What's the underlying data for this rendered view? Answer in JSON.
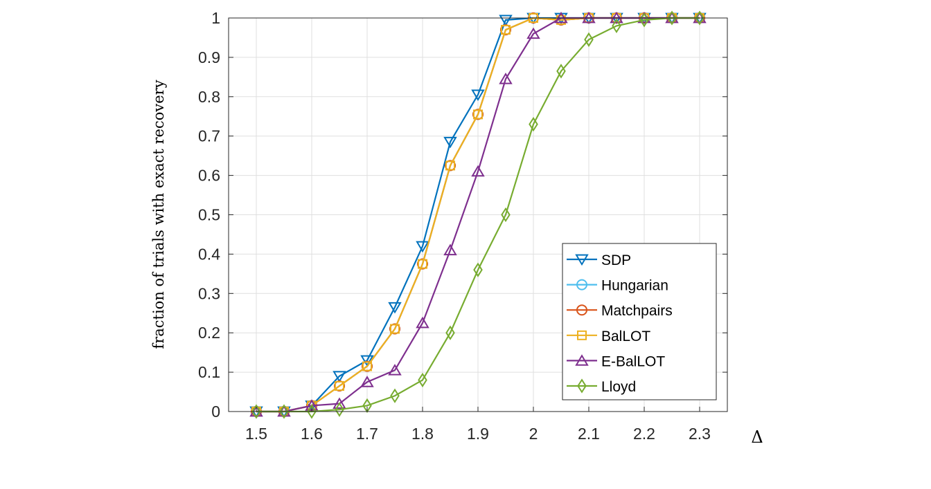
{
  "chart_data": {
    "type": "line",
    "title": "",
    "xlabel": "Δ",
    "ylabel": "fraction of trials with exact recovery",
    "xlim": [
      1.45,
      2.35
    ],
    "ylim": [
      0,
      1
    ],
    "xticks": [
      "1.5",
      "1.6",
      "1.7",
      "1.8",
      "1.9",
      "2",
      "2.1",
      "2.2",
      "2.3"
    ],
    "yticks": [
      "0",
      "0.1",
      "0.2",
      "0.3",
      "0.4",
      "0.5",
      "0.6",
      "0.7",
      "0.8",
      "0.9",
      "1"
    ],
    "grid": true,
    "legend_position": "bottom-right",
    "x": [
      1.5,
      1.55,
      1.6,
      1.65,
      1.7,
      1.75,
      1.8,
      1.85,
      1.9,
      1.95,
      2.0,
      2.05,
      2.1,
      2.15,
      2.2,
      2.25,
      2.3
    ],
    "series": [
      {
        "name": "SDP",
        "color": "#0072BD",
        "marker": "triangle-down",
        "values": [
          0,
          0,
          0.015,
          0.09,
          0.13,
          0.265,
          0.42,
          0.685,
          0.805,
          0.995,
          1,
          1,
          1,
          1,
          1,
          1,
          1
        ]
      },
      {
        "name": "Hungarian",
        "color": "#4DBEEE",
        "marker": "circle",
        "values": [
          0,
          0,
          0.015,
          0.065,
          0.115,
          0.21,
          0.375,
          0.625,
          0.755,
          0.97,
          1,
          0.995,
          1,
          1,
          1,
          1,
          1
        ]
      },
      {
        "name": "Matchpairs",
        "color": "#D95319",
        "marker": "circle",
        "values": [
          0,
          0,
          0.015,
          0.065,
          0.115,
          0.21,
          0.375,
          0.625,
          0.755,
          0.97,
          1,
          0.995,
          1,
          1,
          1,
          1,
          1
        ]
      },
      {
        "name": "BalLOT",
        "color": "#EDB120",
        "marker": "square",
        "values": [
          0,
          0,
          0.015,
          0.065,
          0.115,
          0.21,
          0.375,
          0.625,
          0.755,
          0.97,
          1,
          0.995,
          1,
          1,
          1,
          1,
          1
        ]
      },
      {
        "name": "E-BalLOT",
        "color": "#7E2F8E",
        "marker": "triangle-up",
        "values": [
          0,
          0,
          0.015,
          0.02,
          0.075,
          0.105,
          0.225,
          0.41,
          0.61,
          0.845,
          0.96,
          1,
          1,
          1,
          1,
          1,
          1
        ]
      },
      {
        "name": "Lloyd",
        "color": "#77AC30",
        "marker": "diamond",
        "values": [
          0,
          0,
          0,
          0.005,
          0.015,
          0.04,
          0.08,
          0.2,
          0.36,
          0.5,
          0.73,
          0.865,
          0.945,
          0.98,
          0.995,
          1,
          1
        ]
      }
    ]
  }
}
